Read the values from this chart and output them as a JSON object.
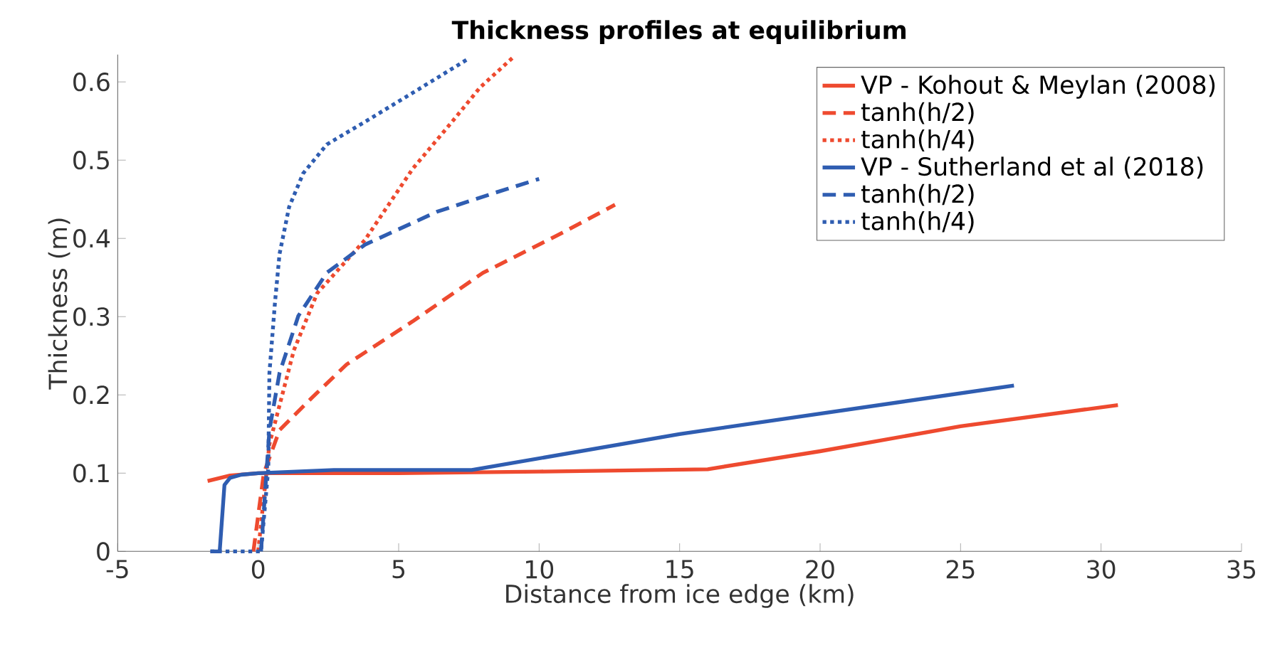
{
  "chart_data": {
    "type": "line",
    "title": "Thickness profiles at equilibrium",
    "xlabel": "Distance from ice edge (km)",
    "ylabel": "Thickness (m)",
    "xlim": [
      -5,
      35
    ],
    "ylim": [
      0,
      0.635
    ],
    "xticks": [
      -5,
      0,
      5,
      10,
      15,
      20,
      25,
      30,
      35
    ],
    "yticks": [
      0,
      0.1,
      0.2,
      0.3,
      0.4,
      0.5,
      0.6
    ],
    "grid": false,
    "legend": "top right",
    "series": [
      {
        "name": "VP - Kohout & Meylan (2008)",
        "color": "#ee4a2f",
        "line_style": "solid",
        "x": [
          -1.8,
          -1,
          0,
          5,
          10,
          16,
          20,
          25,
          30.6
        ],
        "values": [
          0.09,
          0.097,
          0.1,
          0.1,
          0.102,
          0.105,
          0.128,
          0.16,
          0.187
        ]
      },
      {
        "name": "tanh(h/2)",
        "color": "#ee4a2f",
        "line_style": "dashed",
        "x": [
          -0.17,
          0.2,
          0.76,
          1.93,
          3.15,
          5.5,
          8.0,
          10.6,
          12.7
        ],
        "values": [
          0,
          0.1,
          0.155,
          0.197,
          0.239,
          0.294,
          0.356,
          0.403,
          0.443
        ]
      },
      {
        "name": "tanh(h/4)",
        "color": "#ee4a2f",
        "line_style": "dotted",
        "x": [
          0,
          0.4,
          1.27,
          2.1,
          3.8,
          5.5,
          6.9,
          7.9,
          9.06
        ],
        "values": [
          0,
          0.137,
          0.257,
          0.33,
          0.398,
          0.489,
          0.549,
          0.593,
          0.631
        ]
      },
      {
        "name": "VP - Sutherland et al (2018)",
        "color": "#2f5db1",
        "line_style": "solid",
        "x": [
          -1.7,
          -1.37,
          -1.2,
          -1.0,
          -0.6,
          0,
          2.7,
          7.6,
          15,
          26.9
        ],
        "values": [
          0,
          0,
          0.085,
          0.094,
          0.098,
          0.1,
          0.104,
          0.104,
          0.15,
          0.212
        ]
      },
      {
        "name": "tanh(h/2)",
        "color": "#2f5db1",
        "line_style": "dashed",
        "x": [
          0.1,
          0.4,
          0.76,
          1.43,
          2.44,
          3.8,
          6.36,
          8.4,
          10.0
        ],
        "values": [
          0,
          0.155,
          0.228,
          0.301,
          0.356,
          0.392,
          0.434,
          0.458,
          0.476
        ]
      },
      {
        "name": "tanh(h/4)",
        "color": "#2f5db1",
        "line_style": "dotted",
        "x": [
          -1.7,
          0.1,
          0.36,
          0.4,
          0.6,
          0.76,
          1.1,
          1.6,
          2.44,
          3.8,
          5.5,
          7.5
        ],
        "values": [
          0,
          0,
          0.106,
          0.228,
          0.319,
          0.38,
          0.44,
          0.483,
          0.52,
          0.549,
          0.586,
          0.63
        ]
      }
    ]
  }
}
